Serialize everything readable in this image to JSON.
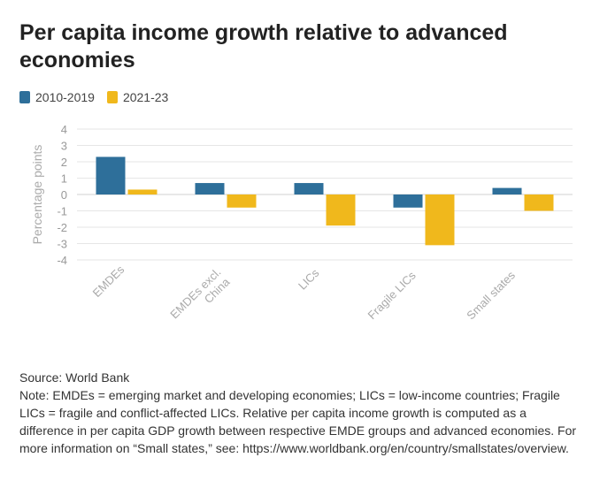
{
  "chart_data": {
    "type": "bar",
    "title": "Per capita income growth relative to advanced economies",
    "xlabel": "",
    "ylabel": "Percentage points",
    "ylim": [
      -4,
      4
    ],
    "yticks": [
      4,
      3,
      2,
      1,
      0,
      -1,
      -2,
      -3,
      -4
    ],
    "categories": [
      "EMDEs",
      "EMDEs excl. China",
      "LICs",
      "Fragile LICs",
      "Small states"
    ],
    "category_lines": [
      [
        "EMDEs"
      ],
      [
        "EMDEs excl.",
        "China"
      ],
      [
        "LICs"
      ],
      [
        "Fragile LICs"
      ],
      [
        "Small states"
      ]
    ],
    "series": [
      {
        "name": "2010-2019",
        "color": "#2e6f9a",
        "values": [
          2.3,
          0.7,
          0.7,
          -0.8,
          0.4
        ]
      },
      {
        "name": "2021-23",
        "color": "#f0b81c",
        "values": [
          0.3,
          -0.8,
          -1.9,
          -3.1,
          -1.0
        ]
      }
    ],
    "grid": true,
    "legend_position": "top-left"
  },
  "footer": {
    "source": "Source: World Bank",
    "note": "Note: EMDEs = emerging market and developing economies; LICs = low-income countries; Fragile LICs = fragile and conflict-affected LICs. Relative per capita income growth is computed as a difference in per capita GDP growth between respective EMDE groups and advanced economies. For more information on “Small states,” see: https://www.worldbank.org/en/country/smallstates/overview."
  }
}
